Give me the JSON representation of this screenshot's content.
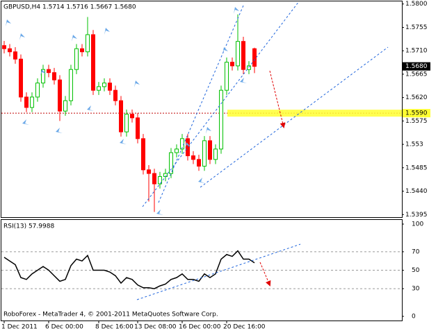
{
  "chart_data": {
    "type": "candlestick",
    "title": "GBPUSD,H4  1.5714 1.5716 1.5667 1.5680",
    "footer": "RoboForex - MetaTrader 4, © 2001-2011 MetaQuotes Software Corp.",
    "categories": [
      "1 Dec 2011",
      null,
      null,
      null,
      null,
      null,
      null,
      null,
      "6 Dec 00:00",
      null,
      null,
      null,
      null,
      null,
      null,
      null,
      null,
      "8 Dec 16:00",
      null,
      null,
      null,
      null,
      null,
      null,
      "13 Dec 08:00",
      null,
      null,
      null,
      null,
      null,
      null,
      null,
      "16 Dec 00:00",
      null,
      null,
      null,
      null,
      null,
      null,
      null,
      "20 Dec 16:00",
      null,
      null,
      null,
      null,
      null
    ],
    "open": [
      1.572,
      1.5714,
      1.5708,
      1.5694,
      1.5621,
      1.5601,
      1.5621,
      1.5648,
      1.5674,
      1.5668,
      1.5654,
      1.5594,
      1.5614,
      1.5674,
      1.5714,
      1.5708,
      1.5741,
      1.5634,
      1.5641,
      1.5648,
      1.5634,
      1.5614,
      1.5554,
      1.5588,
      1.5581,
      1.5541,
      1.5481,
      1.5474,
      1.5454,
      1.5468,
      1.5474,
      1.5514,
      1.5521,
      1.5541,
      1.5508,
      1.5501,
      1.5488,
      1.5537,
      1.5501,
      1.5521,
      1.5634,
      1.5688,
      1.5681,
      1.5728,
      1.5674,
      1.5714
    ],
    "high": [
      1.5729,
      1.5723,
      1.5717,
      1.5703,
      1.563,
      1.563,
      1.5657,
      1.5683,
      1.5683,
      1.5677,
      1.5663,
      1.5623,
      1.5683,
      1.5723,
      1.5723,
      1.5775,
      1.575,
      1.565,
      1.5657,
      1.5657,
      1.5643,
      1.5623,
      1.5597,
      1.5597,
      1.559,
      1.555,
      1.549,
      1.5483,
      1.5477,
      1.5483,
      1.5523,
      1.553,
      1.555,
      1.555,
      1.5517,
      1.551,
      1.5546,
      1.5546,
      1.553,
      1.5643,
      1.5697,
      1.5697,
      1.578,
      1.5737,
      1.569,
      1.5716
    ],
    "low": [
      1.5705,
      1.5699,
      1.5685,
      1.5612,
      1.5592,
      1.5592,
      1.5612,
      1.5639,
      1.5659,
      1.5645,
      1.5575,
      1.5585,
      1.5605,
      1.5665,
      1.5699,
      1.5699,
      1.5625,
      1.5625,
      1.5632,
      1.5625,
      1.5605,
      1.5545,
      1.5545,
      1.5572,
      1.5532,
      1.5472,
      1.542,
      1.54,
      1.5445,
      1.5459,
      1.5465,
      1.5505,
      1.5512,
      1.5499,
      1.5492,
      1.5479,
      1.5479,
      1.5492,
      1.5492,
      1.5512,
      1.5625,
      1.5672,
      1.5672,
      1.5665,
      1.5665,
      1.5667
    ],
    "close": [
      1.5714,
      1.5708,
      1.5694,
      1.5621,
      1.5601,
      1.5621,
      1.5648,
      1.5674,
      1.5668,
      1.5654,
      1.5594,
      1.5614,
      1.5674,
      1.5714,
      1.5708,
      1.5741,
      1.5634,
      1.5641,
      1.5648,
      1.5634,
      1.5614,
      1.5554,
      1.5588,
      1.5581,
      1.5541,
      1.5481,
      1.5474,
      1.5454,
      1.5468,
      1.5474,
      1.5514,
      1.5521,
      1.5541,
      1.5508,
      1.5501,
      1.5488,
      1.5537,
      1.5501,
      1.5521,
      1.5634,
      1.5688,
      1.5681,
      1.5728,
      1.5674,
      1.5681,
      1.568
    ],
    "up_color": "#00c000",
    "down_color": "#ff0000",
    "ylim": [
      1.539,
      1.5805
    ],
    "yticks": [
      {
        "value": 1.58,
        "label": "1.5800"
      },
      1.5755,
      {
        "value": 1.571,
        "label": "1.5710"
      },
      1.5665,
      {
        "value": 1.562,
        "label": "1.5620"
      },
      1.5575,
      1.553,
      1.5485,
      {
        "value": 1.544,
        "label": "1.5440"
      },
      1.5395
    ],
    "price_label": {
      "value": 1.568,
      "label": "1.5680"
    },
    "level": {
      "value": 1.559,
      "label": "1.5590"
    },
    "indicator": {
      "title": "RSI(13) 57.9988",
      "color": "#000000",
      "values": [
        64,
        60,
        56,
        42,
        40,
        46,
        50,
        54,
        50,
        44,
        38,
        40,
        55,
        62,
        60,
        66,
        50,
        50,
        50,
        48,
        44,
        36,
        42,
        40,
        34,
        31,
        31,
        30,
        33,
        35,
        40,
        42,
        46,
        40,
        40,
        38,
        46,
        42,
        46,
        62,
        67,
        65,
        71,
        62,
        62,
        58
      ],
      "ylim": [
        0,
        100
      ],
      "yticks": [
        100,
        70,
        50,
        30,
        0
      ],
      "levels": [
        70,
        50,
        30
      ]
    }
  }
}
